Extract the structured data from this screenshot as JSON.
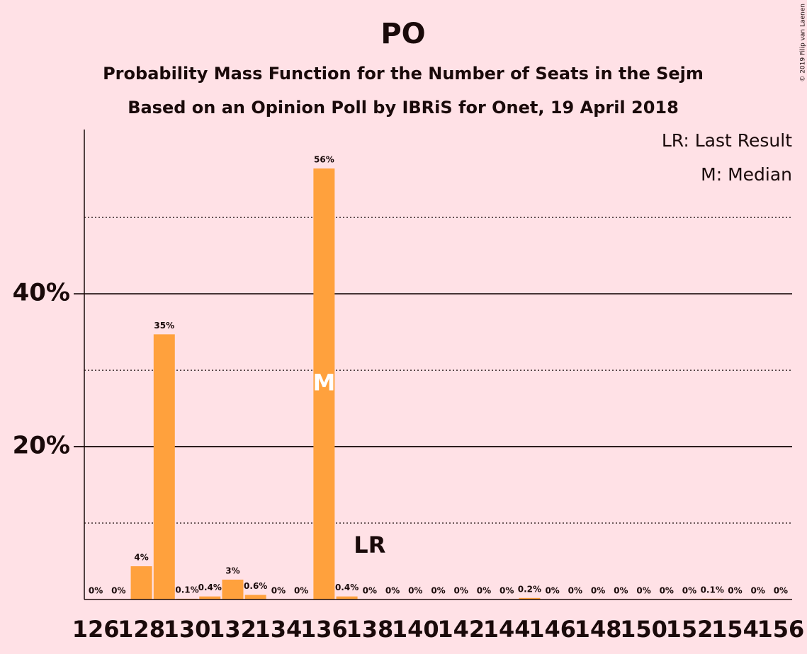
{
  "chart_data": {
    "type": "bar",
    "title": "PO",
    "subtitle": [
      "Probability Mass Function for the Number of Seats in the Sejm",
      "Based on an Opinion Poll by IBRiS for Onet, 19 April 2018"
    ],
    "x": [
      126,
      127,
      128,
      129,
      130,
      131,
      132,
      133,
      134,
      135,
      136,
      137,
      138,
      139,
      140,
      141,
      142,
      143,
      144,
      145,
      146,
      147,
      148,
      149,
      150,
      151,
      152,
      153,
      154,
      155,
      156
    ],
    "values": [
      0,
      0,
      4.35,
      34.7,
      0.1,
      0.4,
      2.6,
      0.6,
      0,
      0,
      56.4,
      0.4,
      0,
      0,
      0,
      0,
      0,
      0,
      0,
      0.2,
      0,
      0,
      0,
      0,
      0,
      0,
      0,
      0.1,
      0,
      0,
      0
    ],
    "value_labels": [
      "0%",
      "0%",
      "4%",
      "35%",
      "0.1%",
      "0.4%",
      "3%",
      "0.6%",
      "0%",
      "0%",
      "56%",
      "0.4%",
      "0%",
      "0%",
      "0%",
      "0%",
      "0%",
      "0%",
      "0%",
      "0.2%",
      "0%",
      "0%",
      "0%",
      "0%",
      "0%",
      "0%",
      "0%",
      "0.1%",
      "0%",
      "0%",
      "0%"
    ],
    "color": "#ffa13d",
    "xlim": [
      125.5,
      156.5
    ],
    "xticks": [
      126,
      128,
      130,
      132,
      134,
      136,
      138,
      140,
      142,
      144,
      146,
      148,
      150,
      152,
      154,
      156
    ],
    "ylim": [
      0,
      61.5
    ],
    "yticks": [
      {
        "value": 20,
        "label": "20%"
      },
      {
        "value": 40,
        "label": "40%"
      }
    ],
    "minor_yticks": [
      10,
      30,
      50
    ],
    "annotations": [
      {
        "text": "M",
        "x": 136
      },
      {
        "text": "LR",
        "x": 138
      }
    ],
    "legend": [
      "LR: Last Result",
      "M: Median"
    ],
    "copyright": "© 2019 Filip van Laenen"
  }
}
